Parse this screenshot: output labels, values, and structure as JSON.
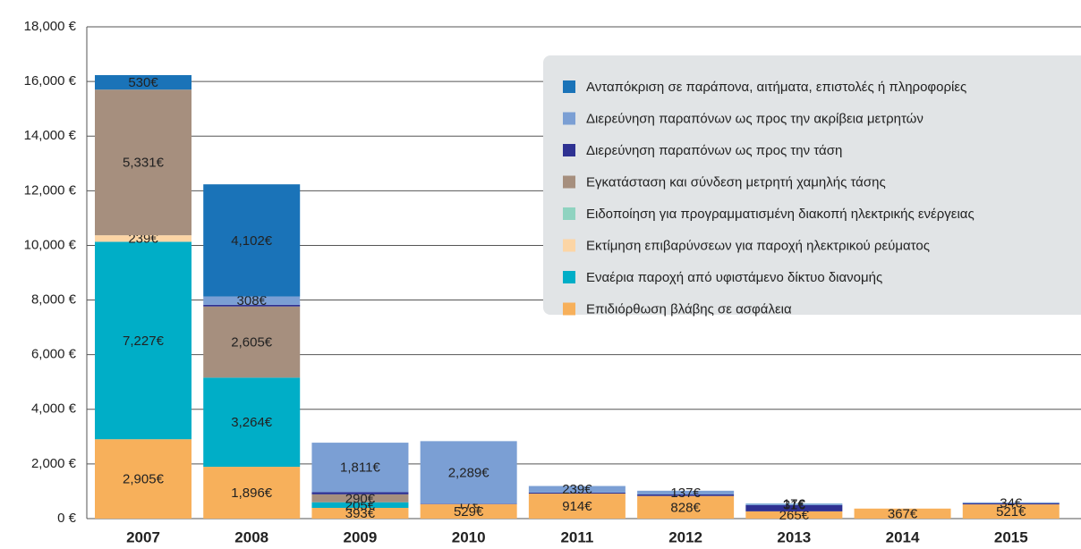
{
  "chart_data": {
    "type": "stacked_bar",
    "categories": [
      "2007",
      "2008",
      "2009",
      "2010",
      "2011",
      "2012",
      "2013",
      "2014",
      "2015"
    ],
    "ylim": [
      0,
      18000
    ],
    "yticks": [
      {
        "value": 0,
        "label": "0 €"
      },
      {
        "value": 2000,
        "label": "2,000 €"
      },
      {
        "value": 4000,
        "label": "4,000 €"
      },
      {
        "value": 6000,
        "label": "6,000 €"
      },
      {
        "value": 8000,
        "label": "8,000 €"
      },
      {
        "value": 10000,
        "label": "10,000 €"
      },
      {
        "value": 12000,
        "label": "12,000 €"
      },
      {
        "value": 14000,
        "label": "14,000 €"
      },
      {
        "value": 16000,
        "label": "16,000 €"
      },
      {
        "value": 18000,
        "label": "18,000 €"
      }
    ],
    "grid": true,
    "legend": "top-right",
    "series": [
      {
        "name": "Επιδιόρθωση βλάβης σε ασφάλεια",
        "color": "#f7b05b",
        "values": [
          2905,
          1896,
          393,
          529,
          914,
          828,
          265,
          367,
          521
        ],
        "value_labels": [
          "2,905€",
          "1,896€",
          "393€",
          "529€",
          "914€",
          "828€",
          "265€",
          "367€",
          "521€"
        ]
      },
      {
        "name": "Εναέρια παροχή από υφιστάμενο δίκτυο διανομής",
        "color": "#00aec7",
        "values": [
          7227,
          3264,
          205,
          null,
          null,
          null,
          null,
          null,
          null
        ],
        "value_labels": [
          "7,227€",
          "3,264€",
          "205€",
          null,
          null,
          null,
          null,
          null,
          null
        ]
      },
      {
        "name": "Εκτίμηση επιβαρύνσεων για παροχή ηλεκτρικού ρεύματος",
        "color": "#fcd5a5",
        "values": [
          239,
          null,
          null,
          null,
          null,
          null,
          null,
          null,
          null
        ],
        "value_labels": [
          "239€",
          null,
          null,
          null,
          null,
          null,
          null,
          null,
          null
        ]
      },
      {
        "name": "Ειδοποίηση για προγραμματισμένη διακοπή ηλεκτρικής ενέργειας",
        "color": "#8fd3c0",
        "values": [
          null,
          null,
          null,
          null,
          null,
          null,
          null,
          null,
          null
        ]
      },
      {
        "name": "Εγκατάσταση και σύνδεση μετρητή χαμηλής τάσης",
        "color": "#a68f7e",
        "values": [
          5331,
          2605,
          290,
          null,
          null,
          null,
          null,
          null,
          null
        ],
        "value_labels": [
          "5,331€",
          "2,605€",
          "290€",
          null,
          null,
          null,
          null,
          null,
          null
        ]
      },
      {
        "name": "Διερεύνηση παραπόνων ως προς την τάση",
        "color": "#2e3192",
        "values": [
          null,
          60,
          80,
          17,
          40,
          55,
          230,
          null,
          40
        ],
        "value_labels": [
          null,
          null,
          null,
          "17€",
          null,
          null,
          null,
          null,
          null
        ]
      },
      {
        "name": "Διερεύνηση παραπόνων ως προς την ακρίβεια μετρητών",
        "color": "#7b9fd4",
        "values": [
          null,
          308,
          1811,
          2289,
          239,
          137,
          31,
          null,
          34
        ],
        "value_labels": [
          null,
          "308€",
          "1,811€",
          "2,289€",
          "239€",
          "137€",
          "31€",
          null,
          "34€"
        ]
      },
      {
        "name": "Ανταπόκριση σε παράπονα, αιτήματα, επιστολές ή πληροφορίες",
        "color": "#1a73b8",
        "values": [
          530,
          4102,
          null,
          null,
          null,
          null,
          17,
          null,
          null
        ],
        "value_labels": [
          "530€",
          "4,102€",
          null,
          null,
          null,
          null,
          "17€",
          null,
          null
        ]
      }
    ]
  }
}
